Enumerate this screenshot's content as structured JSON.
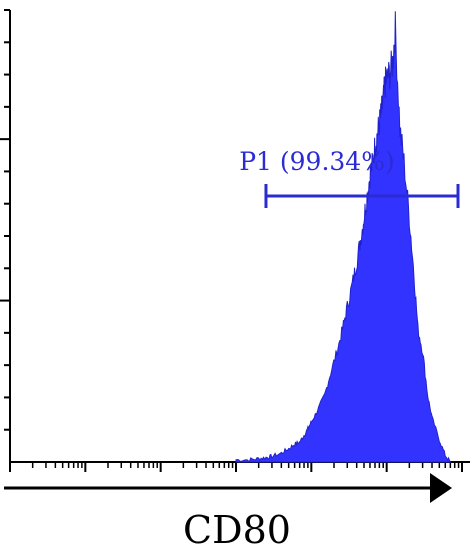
{
  "chart_data": {
    "type": "area",
    "title": "",
    "xlabel": "CD80",
    "ylabel": "",
    "x_scale": "log",
    "xlim": [
      1,
      1000000
    ],
    "ylim": [
      0,
      400
    ],
    "fill_color": "#3333ff",
    "edge_color": "#2222cc",
    "gate": {
      "label": "P1 (99.34%)",
      "x_start": 2500,
      "x_end": 1000000,
      "color": "#2b2bd6"
    },
    "x": [
      1000,
      1500,
      2000,
      2500,
      3000,
      4000,
      5000,
      6000,
      7000,
      8000,
      9000,
      10000,
      12000,
      15000,
      18000,
      22000,
      26000,
      30000,
      35000,
      40000,
      45000,
      50000,
      55000,
      60000,
      65000,
      70000,
      75000,
      80000,
      85000,
      90000,
      95000,
      100000,
      110000,
      120000,
      130000,
      150000,
      170000,
      200000,
      230000,
      260000,
      300000,
      350000,
      400000,
      500000,
      600000,
      700000
    ],
    "y": [
      2,
      2,
      3,
      4,
      5,
      8,
      12,
      16,
      18,
      24,
      30,
      36,
      46,
      60,
      80,
      100,
      120,
      140,
      160,
      180,
      200,
      220,
      240,
      258,
      270,
      285,
      295,
      305,
      315,
      325,
      340,
      345,
      350,
      360,
      390,
      300,
      270,
      220,
      170,
      120,
      100,
      60,
      40,
      20,
      6,
      0
    ]
  },
  "axis": {
    "arrow_label": "CD80"
  }
}
